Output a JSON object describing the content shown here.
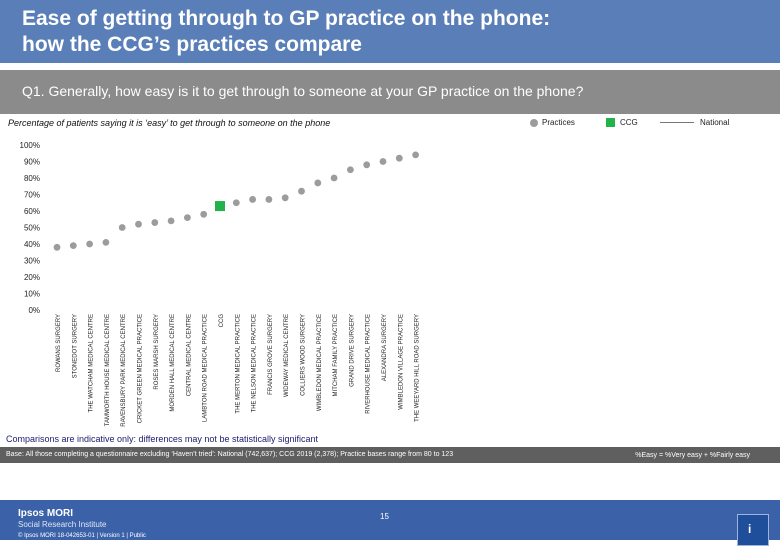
{
  "header": {
    "title": "Ease of getting through to GP practice on the phone:\nhow the CCG’s practices compare"
  },
  "question": "Q1. Generally, how easy is it to get through to someone at your GP practice on the phone?",
  "subtitle": "Percentage of patients saying it is ‘easy’ to get through to someone on the phone",
  "legend": {
    "practices": "Practices",
    "ccg": "CCG",
    "national": "National"
  },
  "comparison_note": "Comparisons are indicative only: differences may not be statistically significant",
  "base_note": "Base: All those completing a questionnaire excluding ‘Haven’t tried’: National (742,637); CCG 2019 (2,378); Practice bases range from 80 to 123",
  "easy_def": "%Easy = %Very easy + %Fairly easy",
  "footer": {
    "brand": "Ipsos MORI",
    "brand_sub": "Social Research Institute",
    "copyright": "© Ipsos MORI     18-042653-01 | Version 1 | Public",
    "page": "15"
  },
  "colors": {
    "practice": "#9c9c9c",
    "ccg": "#21b34a",
    "header": "#5a7fb8",
    "question_bar": "#8b8b8b"
  },
  "chart_data": {
    "type": "scatter",
    "title": "",
    "xlabel": "",
    "ylabel": "",
    "ylim": [
      0,
      100
    ],
    "y_ticks": [
      "0%",
      "10%",
      "20%",
      "30%",
      "40%",
      "50%",
      "60%",
      "70%",
      "80%",
      "90%",
      "100%"
    ],
    "grid": false,
    "legend_position": "top-right",
    "categories": [
      "ROWANS SURGERY",
      "STONEDOT SURGERY",
      "THE WATCHAM MEDICAL CENTRE",
      "TAMWORTH HOUSE MEDICAL CENTRE",
      "RAVENSBURY PARK MEDICAL CENTRE",
      "CRICKET GREEN MEDICAL PRACTICE",
      "ROSES MARSH SURGERY",
      "MORDEN HALL MEDICAL CENTRE",
      "CENTRAL MEDICAL CENTRE",
      "LAMBTON ROAD MEDICAL PRACTICE",
      "CCG",
      "THE MERTON MEDICAL PRACTICE",
      "THE NELSON MEDICAL PRACTICE",
      "FRANCIS GROVE SURGERY",
      "WIDEWAY MEDICAL CENTRE",
      "COLLIERS WOOD SURGERY",
      "WIMBLEDON MEDICAL PRACTICE",
      "MITCHAM FAMILY PRACTICE",
      "GRAND DRIVE SURGERY",
      "RIVERHOUSE MEDICAL PRACTICE",
      "ALEXANDRA SURGERY",
      "WIMBLEDON VILLAGE PRACTICE",
      "THE WEEYARD HILL ROAD SURGERY"
    ],
    "series": [
      {
        "name": "Practices",
        "values": [
          38,
          39,
          40,
          41,
          50,
          52,
          53,
          54,
          56,
          58,
          null,
          65,
          67,
          67,
          68,
          72,
          77,
          80,
          85,
          88,
          90,
          92,
          94
        ]
      },
      {
        "name": "CCG",
        "values": [
          null,
          null,
          null,
          null,
          null,
          null,
          null,
          null,
          null,
          null,
          63,
          null,
          null,
          null,
          null,
          null,
          null,
          null,
          null,
          null,
          null,
          null,
          null
        ]
      }
    ]
  }
}
